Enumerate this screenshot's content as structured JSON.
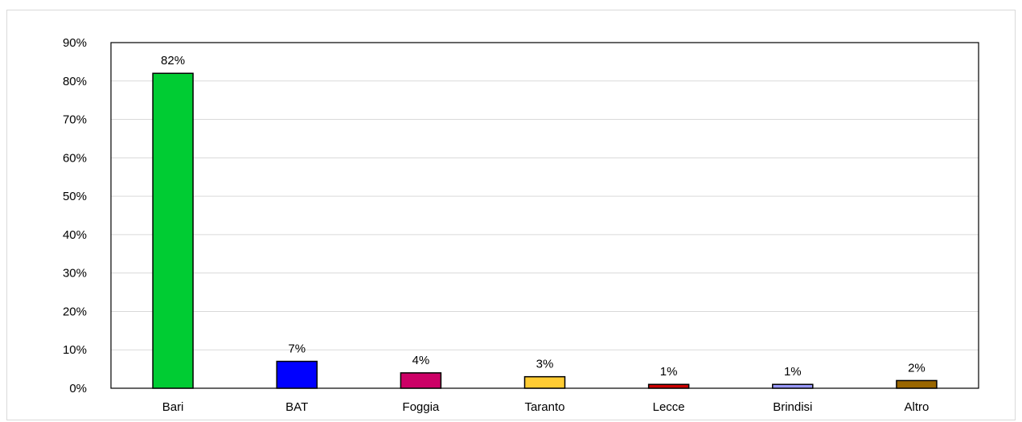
{
  "chart_data": {
    "type": "bar",
    "categories": [
      "Bari",
      "BAT",
      "Foggia",
      "Taranto",
      "Lecce",
      "Brindisi",
      "Altro"
    ],
    "values": [
      82,
      7,
      4,
      3,
      1,
      1,
      2
    ],
    "data_labels": [
      "82%",
      "7%",
      "4%",
      "3%",
      "1%",
      "1%",
      "2%"
    ],
    "colors": [
      "#00cc33",
      "#0000ff",
      "#cc0066",
      "#ffcc33",
      "#cc0000",
      "#9999ff",
      "#996600"
    ],
    "ylim": [
      0,
      90
    ],
    "yticks": [
      0,
      10,
      20,
      30,
      40,
      50,
      60,
      70,
      80,
      90
    ],
    "ytick_labels": [
      "0%",
      "10%",
      "20%",
      "30%",
      "40%",
      "50%",
      "60%",
      "70%",
      "80%",
      "90%"
    ],
    "grid": true,
    "legend": "none",
    "title": "",
    "xlabel": "",
    "ylabel": ""
  }
}
